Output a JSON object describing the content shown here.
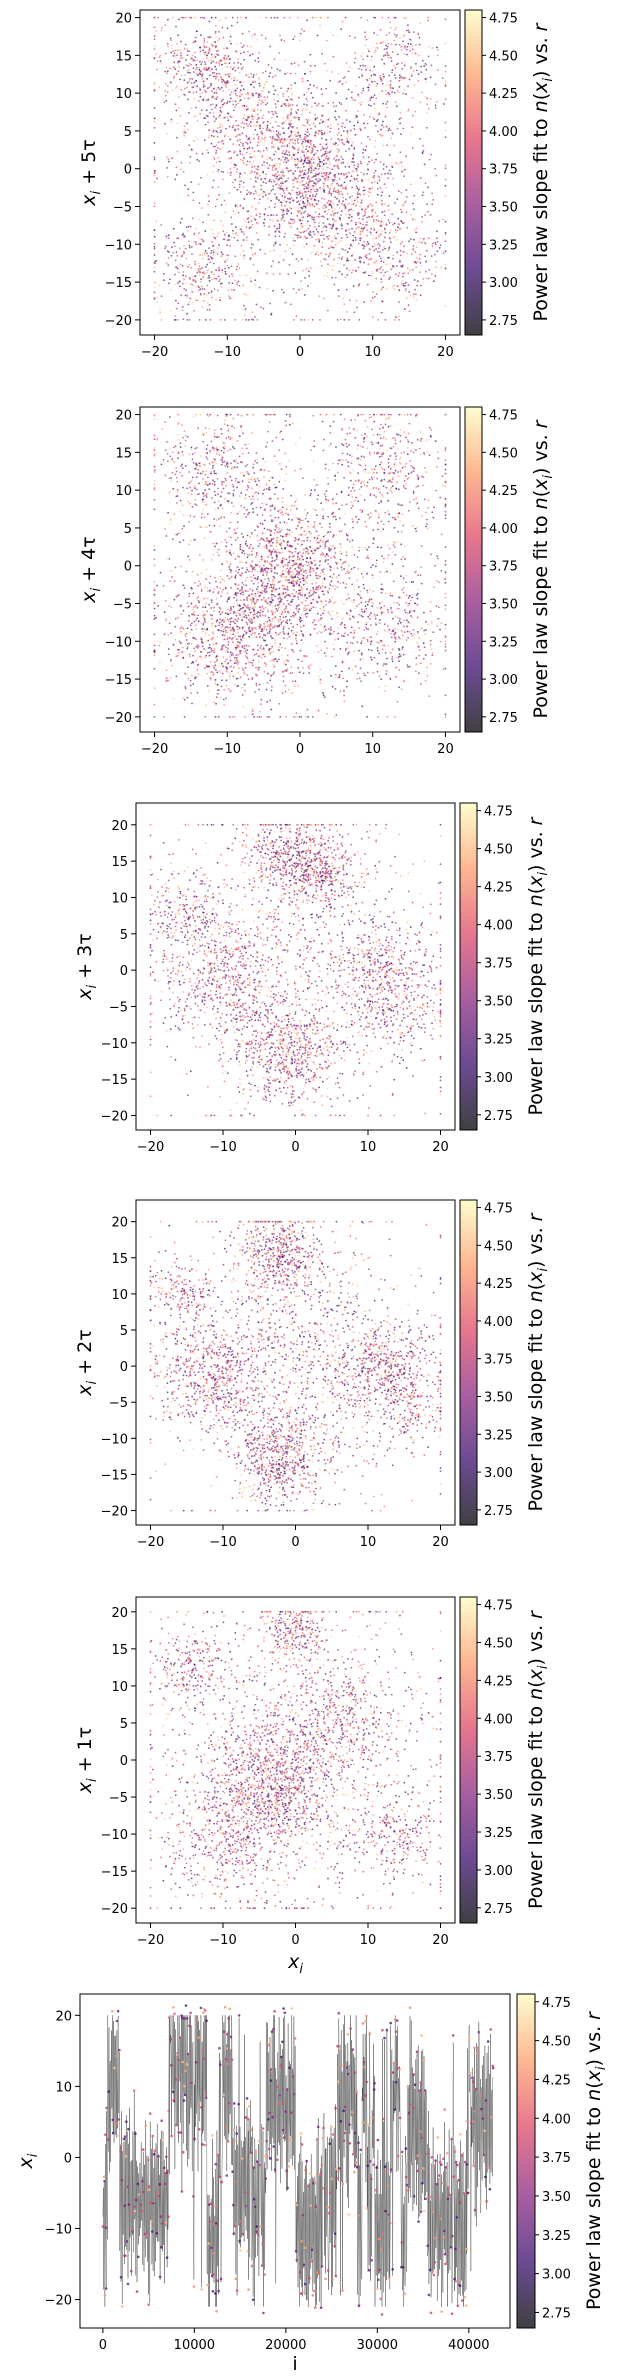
{
  "colormap": "magma",
  "colors": [
    "#000004",
    "#3b0f70",
    "#8c2981",
    "#de4968",
    "#fe9f6d",
    "#fcfdbf"
  ],
  "chart_data": [
    {
      "type": "scatter",
      "title": "",
      "xlabel": "",
      "ylabel_base": "x",
      "ylabel_sub": "i",
      "ylabel_rest": " + 5τ",
      "xlim": [
        -22,
        22
      ],
      "ylim": [
        -22,
        21
      ],
      "xticks": [
        -20,
        -10,
        0,
        10,
        20
      ],
      "xtick_labels": [
        "−20",
        "−10",
        "0",
        "10",
        "20"
      ],
      "yticks": [
        -20,
        -15,
        -10,
        -5,
        0,
        5,
        10,
        15,
        20
      ],
      "ytick_labels": [
        "−20",
        "−15",
        "−10",
        "−5",
        "0",
        "5",
        "10",
        "15",
        "20"
      ],
      "grid": false,
      "clusters": [
        {
          "x": -13,
          "y": 13,
          "spread": 3.5,
          "weight": 0.1
        },
        {
          "x": 13,
          "y": 13,
          "spread": 3.5,
          "weight": 0.07
        },
        {
          "x": -13,
          "y": -13,
          "spread": 3.5,
          "weight": 0.09
        },
        {
          "x": 13,
          "y": -12,
          "spread": 3.5,
          "weight": 0.07
        },
        {
          "x": 0,
          "y": 0,
          "spread": 4.5,
          "weight": 0.25
        },
        {
          "x": -7,
          "y": 7,
          "spread": 4,
          "weight": 0.08
        },
        {
          "x": 7,
          "y": -6,
          "spread": 4,
          "weight": 0.08
        },
        {
          "x": 0,
          "y": 0,
          "spread": 10,
          "weight": 0.26
        }
      ],
      "colorbar": {
        "label_pre": "Power law slope fit to ",
        "label_n": "n",
        "label_mid": "(",
        "label_x": "x",
        "label_i": "i",
        "label_post": ") vs. ",
        "label_r": "r",
        "vmin": 2.65,
        "vmax": 4.8,
        "ticks": [
          2.75,
          3.0,
          3.25,
          3.5,
          3.75,
          4.0,
          4.25,
          4.5,
          4.75
        ],
        "tick_labels": [
          "2.75",
          "3.00",
          "3.25",
          "3.50",
          "3.75",
          "4.00",
          "4.25",
          "4.50",
          "4.75"
        ]
      }
    },
    {
      "type": "scatter",
      "title": "",
      "xlabel": "",
      "ylabel_base": "x",
      "ylabel_sub": "i",
      "ylabel_rest": " + 4τ",
      "xlim": [
        -22,
        22
      ],
      "ylim": [
        -22,
        21
      ],
      "xticks": [
        -20,
        -10,
        0,
        10,
        20
      ],
      "xtick_labels": [
        "−20",
        "−10",
        "0",
        "10",
        "20"
      ],
      "yticks": [
        -20,
        -15,
        -10,
        -5,
        0,
        5,
        10,
        15,
        20
      ],
      "ytick_labels": [
        "−20",
        "−15",
        "−10",
        "−5",
        "0",
        "5",
        "10",
        "15",
        "20"
      ],
      "grid": false,
      "clusters": [
        {
          "x": -12,
          "y": 12,
          "spread": 4,
          "weight": 0.11
        },
        {
          "x": 12,
          "y": 13,
          "spread": 4,
          "weight": 0.09
        },
        {
          "x": -12,
          "y": -10,
          "spread": 4,
          "weight": 0.1
        },
        {
          "x": 12,
          "y": -8,
          "spread": 4,
          "weight": 0.08
        },
        {
          "x": -2,
          "y": 0,
          "spread": 4,
          "weight": 0.2
        },
        {
          "x": 0,
          "y": 0,
          "spread": 10,
          "weight": 0.3
        },
        {
          "x": -6,
          "y": -8,
          "spread": 4,
          "weight": 0.12
        }
      ],
      "colorbar": {
        "label_pre": "Power law slope fit to ",
        "label_n": "n",
        "label_mid": "(",
        "label_x": "x",
        "label_i": "i",
        "label_post": ") vs. ",
        "label_r": "r",
        "vmin": 2.65,
        "vmax": 4.8,
        "ticks": [
          2.75,
          3.0,
          3.25,
          3.5,
          3.75,
          4.0,
          4.25,
          4.5,
          4.75
        ],
        "tick_labels": [
          "2.75",
          "3.00",
          "3.25",
          "3.50",
          "3.75",
          "4.00",
          "4.25",
          "4.50",
          "4.75"
        ]
      }
    },
    {
      "type": "scatter",
      "title": "",
      "xlabel": "",
      "ylabel_base": "x",
      "ylabel_sub": "i",
      "ylabel_rest": " + 3τ",
      "xlim": [
        -22,
        22
      ],
      "ylim": [
        -22,
        23
      ],
      "xticks": [
        -20,
        -10,
        0,
        10,
        20
      ],
      "xtick_labels": [
        "−20",
        "−10",
        "0",
        "10",
        "20"
      ],
      "yticks": [
        -20,
        -15,
        -10,
        -5,
        0,
        5,
        10,
        15,
        20
      ],
      "ytick_labels": [
        "−20",
        "−15",
        "−10",
        "−5",
        "0",
        "5",
        "10",
        "15",
        "20"
      ],
      "grid": false,
      "clusters": [
        {
          "x": -1,
          "y": 15,
          "spread": 3,
          "weight": 0.12
        },
        {
          "x": 4,
          "y": 14,
          "spread": 2.5,
          "weight": 0.08
        },
        {
          "x": -1,
          "y": -11,
          "spread": 3.5,
          "weight": 0.15
        },
        {
          "x": -10,
          "y": -1,
          "spread": 4,
          "weight": 0.14
        },
        {
          "x": 12,
          "y": 0,
          "spread": 3.5,
          "weight": 0.1
        },
        {
          "x": -15,
          "y": 8,
          "spread": 3,
          "weight": 0.06
        },
        {
          "x": 15,
          "y": -6,
          "spread": 3,
          "weight": 0.05
        },
        {
          "x": 0,
          "y": 1,
          "spread": 10,
          "weight": 0.3
        }
      ],
      "colorbar": {
        "label_pre": "Power law slope fit to ",
        "label_n": "n",
        "label_mid": "(",
        "label_x": "x",
        "label_i": "i",
        "label_post": ") vs. ",
        "label_r": "r",
        "vmin": 2.65,
        "vmax": 4.8,
        "ticks": [
          2.75,
          3.0,
          3.25,
          3.5,
          3.75,
          4.0,
          4.25,
          4.5,
          4.75
        ],
        "tick_labels": [
          "2.75",
          "3.00",
          "3.25",
          "3.50",
          "3.75",
          "4.00",
          "4.25",
          "4.50",
          "4.75"
        ]
      }
    },
    {
      "type": "scatter",
      "title": "",
      "xlabel": "",
      "ylabel_base": "x",
      "ylabel_sub": "i",
      "ylabel_rest": " + 2τ",
      "xlim": [
        -22,
        22
      ],
      "ylim": [
        -22,
        23
      ],
      "xticks": [
        -20,
        -10,
        0,
        10,
        20
      ],
      "xtick_labels": [
        "−20",
        "−10",
        "0",
        "10",
        "20"
      ],
      "yticks": [
        -20,
        -15,
        -10,
        -5,
        0,
        5,
        10,
        15,
        20
      ],
      "ytick_labels": [
        "−20",
        "−15",
        "−10",
        "−5",
        "0",
        "5",
        "10",
        "15",
        "20"
      ],
      "grid": false,
      "clusters": [
        {
          "x": -2,
          "y": 15,
          "spread": 3,
          "weight": 0.13
        },
        {
          "x": -2,
          "y": -13,
          "spread": 3,
          "weight": 0.14
        },
        {
          "x": -12,
          "y": -1,
          "spread": 3.5,
          "weight": 0.13
        },
        {
          "x": 12,
          "y": 0,
          "spread": 3.5,
          "weight": 0.12
        },
        {
          "x": -16,
          "y": 10,
          "spread": 2.5,
          "weight": 0.05
        },
        {
          "x": 16,
          "y": -6,
          "spread": 2.5,
          "weight": 0.05
        },
        {
          "x": 0,
          "y": 0,
          "spread": 9,
          "weight": 0.38
        }
      ],
      "colorbar": {
        "label_pre": "Power law slope fit to ",
        "label_n": "n",
        "label_mid": "(",
        "label_x": "x",
        "label_i": "i",
        "label_post": ") vs. ",
        "label_r": "r",
        "vmin": 2.65,
        "vmax": 4.8,
        "ticks": [
          2.75,
          3.0,
          3.25,
          3.5,
          3.75,
          4.0,
          4.25,
          4.5,
          4.75
        ],
        "tick_labels": [
          "2.75",
          "3.00",
          "3.25",
          "3.50",
          "3.75",
          "4.00",
          "4.25",
          "4.50",
          "4.75"
        ]
      }
    },
    {
      "type": "scatter",
      "title": "",
      "xlabel_base": "x",
      "xlabel_sub": "i",
      "ylabel_base": "x",
      "ylabel_sub": "i",
      "ylabel_rest": " + 1τ",
      "xlim": [
        -22,
        22
      ],
      "ylim": [
        -22,
        22
      ],
      "xticks": [
        -20,
        -10,
        0,
        10,
        20
      ],
      "xtick_labels": [
        "−20",
        "−10",
        "0",
        "10",
        "20"
      ],
      "yticks": [
        -20,
        -15,
        -10,
        -5,
        0,
        5,
        10,
        15,
        20
      ],
      "ytick_labels": [
        "−20",
        "−15",
        "−10",
        "−5",
        "0",
        "5",
        "10",
        "15",
        "20"
      ],
      "grid": false,
      "clusters": [
        {
          "x": 0,
          "y": 17,
          "spread": 2,
          "weight": 0.07
        },
        {
          "x": -14,
          "y": 12,
          "spread": 3,
          "weight": 0.07
        },
        {
          "x": -3,
          "y": -3,
          "spread": 4,
          "weight": 0.22
        },
        {
          "x": -10,
          "y": -10,
          "spread": 4,
          "weight": 0.12
        },
        {
          "x": 14,
          "y": -10,
          "spread": 3,
          "weight": 0.07
        },
        {
          "x": 6,
          "y": 6,
          "spread": 4,
          "weight": 0.1
        },
        {
          "x": 0,
          "y": 0,
          "spread": 10,
          "weight": 0.35
        }
      ],
      "colorbar": {
        "label_pre": "Power law slope fit to ",
        "label_n": "n",
        "label_mid": "(",
        "label_x": "x",
        "label_i": "i",
        "label_post": ") vs. ",
        "label_r": "r",
        "vmin": 2.65,
        "vmax": 4.8,
        "ticks": [
          2.75,
          3.0,
          3.25,
          3.5,
          3.75,
          4.0,
          4.25,
          4.5,
          4.75
        ],
        "tick_labels": [
          "2.75",
          "3.00",
          "3.25",
          "3.50",
          "3.75",
          "4.00",
          "4.25",
          "4.50",
          "4.75"
        ]
      }
    },
    {
      "type": "line",
      "title": "",
      "xlabel": "i",
      "ylabel_base": "x",
      "ylabel_sub": "i",
      "ylabel_rest": "",
      "xlim": [
        -2500,
        44500
      ],
      "ylim": [
        -24,
        23
      ],
      "xticks": [
        0,
        10000,
        20000,
        30000,
        40000
      ],
      "xtick_labels": [
        "0",
        "10000",
        "20000",
        "30000",
        "40000"
      ],
      "yticks": [
        -20,
        -10,
        0,
        10,
        20
      ],
      "ytick_labels": [
        "−20",
        "−10",
        "0",
        "10",
        "20"
      ],
      "grid": false,
      "x_range": [
        0,
        42700
      ],
      "y_amplitude": 20,
      "colorbar": {
        "label_pre": "Power law slope fit to ",
        "label_n": "n",
        "label_mid": "(",
        "label_x": "x",
        "label_i": "i",
        "label_post": ") vs. ",
        "label_r": "r",
        "vmin": 2.65,
        "vmax": 4.8,
        "ticks": [
          2.75,
          3.0,
          3.25,
          3.5,
          3.75,
          4.0,
          4.25,
          4.5,
          4.75
        ],
        "tick_labels": [
          "2.75",
          "3.00",
          "3.25",
          "3.50",
          "3.75",
          "4.00",
          "4.25",
          "4.50",
          "4.75"
        ]
      }
    }
  ]
}
